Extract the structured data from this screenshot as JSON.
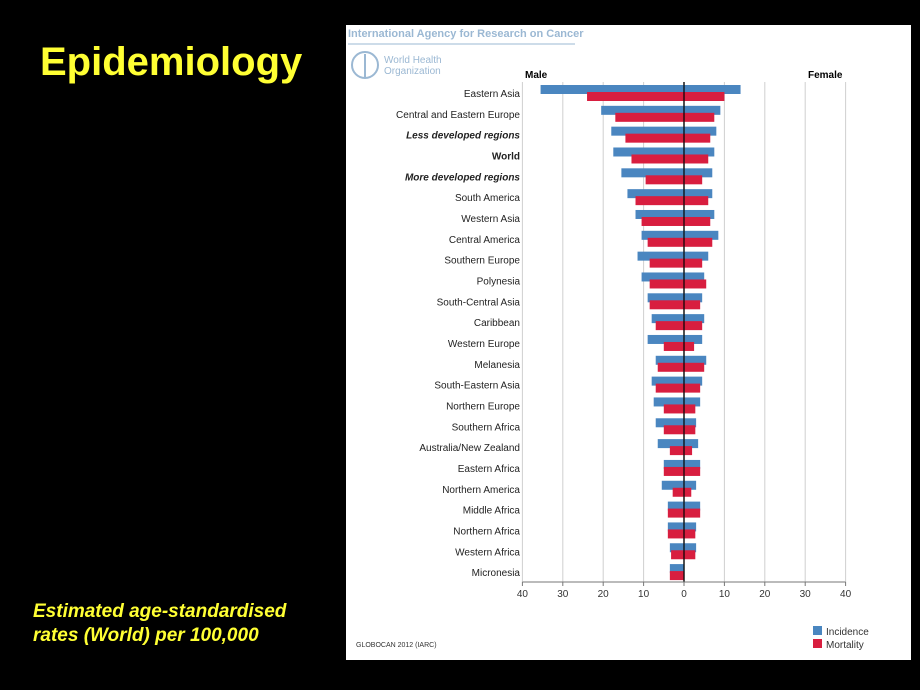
{
  "slide": {
    "title": "Epidemiology",
    "caption_line1": "Estimated age-standardised",
    "caption_line2": "rates (World) per 100,000"
  },
  "header": {
    "agency": "International Agency for Research on Cancer",
    "who_line1": "World Health",
    "who_line2": "Organization"
  },
  "source": "GLOBOCAN 2012 (IARC)",
  "colors": {
    "incidence": "#4a86c0",
    "mortality": "#d81e3f",
    "accent": "#ffff33"
  },
  "chart_data": {
    "type": "bar",
    "orientation": "horizontal-diverging",
    "left_label": "Male",
    "right_label": "Female",
    "xlim": [
      -40,
      40
    ],
    "xticks": [
      40,
      30,
      20,
      10,
      0,
      10,
      20,
      30,
      40
    ],
    "grid": true,
    "legend_position": "bottom-right",
    "categories": [
      "Eastern Asia",
      "Central and Eastern Europe",
      "Less developed regions",
      "World",
      "More developed regions",
      "South America",
      "Western Asia",
      "Central America",
      "Southern Europe",
      "Polynesia",
      "South-Central Asia",
      "Caribbean",
      "Western Europe",
      "Melanesia",
      "South-Eastern Asia",
      "Northern Europe",
      "Southern Africa",
      "Australia/New Zealand",
      "Eastern Africa",
      "Northern America",
      "Middle Africa",
      "Northern Africa",
      "Western Africa",
      "Micronesia"
    ],
    "bold_italic_categories": [
      "Less developed regions",
      "More developed regions"
    ],
    "bold_categories": [
      "World"
    ],
    "series": [
      {
        "name": "Incidence",
        "male": [
          35.5,
          20.5,
          18,
          17.5,
          15.5,
          14,
          12,
          10.5,
          11.5,
          10.5,
          9,
          8,
          9,
          7,
          8,
          7.5,
          7,
          6.5,
          5,
          5.5,
          4,
          4,
          3.5,
          3.5
        ],
        "female": [
          14,
          9,
          8,
          7.5,
          7,
          7,
          7.5,
          8.5,
          6,
          5,
          4.5,
          5,
          4.5,
          5.5,
          4.5,
          4,
          3,
          3.5,
          4,
          3,
          4,
          3,
          3,
          0
        ]
      },
      {
        "name": "Mortality",
        "male": [
          24,
          17,
          14.5,
          13,
          9.5,
          12,
          10.5,
          9,
          8.5,
          8.5,
          8.5,
          7,
          5,
          6.5,
          7,
          5,
          5,
          3.5,
          5,
          2.8,
          4,
          4,
          3.2,
          3.5
        ],
        "female": [
          10,
          7.5,
          6.5,
          6,
          4.5,
          6,
          6.5,
          7,
          4.5,
          5.5,
          4,
          4.5,
          2.5,
          5,
          4,
          2.8,
          2.8,
          2,
          4,
          1.8,
          4,
          2.8,
          2.8,
          0
        ]
      }
    ]
  }
}
